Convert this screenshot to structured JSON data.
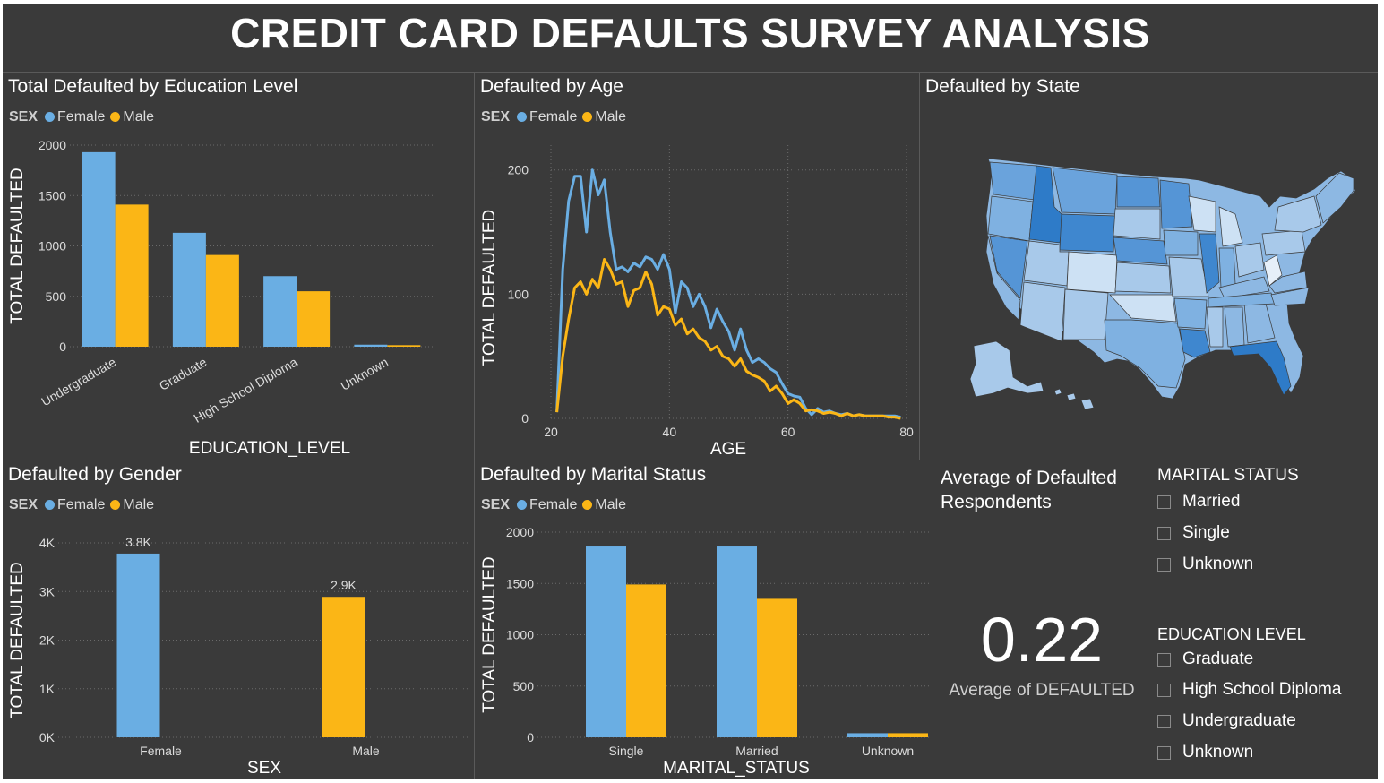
{
  "header": {
    "title": "CREDIT CARD DEFAULTS SURVEY ANALYSIS"
  },
  "colors": {
    "female": "#6aaee3",
    "male": "#fbb616",
    "background": "#3a3a3a",
    "text": "#ffffff"
  },
  "legend": {
    "title": "SEX",
    "female": "Female",
    "male": "Male"
  },
  "charts": {
    "education": {
      "title": "Total Defaulted by Education Level",
      "chart_data": {
        "type": "bar",
        "categories": [
          "Undergraduate",
          "Graduate",
          "High School Diploma",
          "Unknown"
        ],
        "series": [
          {
            "name": "Female",
            "values": [
              1930,
              1130,
              700,
              20
            ]
          },
          {
            "name": "Male",
            "values": [
              1410,
              910,
              550,
              15
            ]
          }
        ],
        "xlabel": "EDUCATION_LEVEL",
        "ylabel": "TOTAL DEFAULTED",
        "ylim": [
          0,
          2000
        ],
        "yticks": [
          0,
          500,
          1000,
          1500,
          2000
        ]
      }
    },
    "age": {
      "title": "Defaulted by Age",
      "chart_data": {
        "type": "line",
        "xlabel": "AGE",
        "ylabel": "TOTAL DEFAULTED",
        "xlim": [
          20,
          80
        ],
        "ylim": [
          0,
          220
        ],
        "xticks": [
          20,
          40,
          60,
          80
        ],
        "yticks": [
          0,
          100,
          200
        ],
        "series": [
          {
            "name": "Female",
            "x": [
              21,
              22,
              23,
              24,
              25,
              26,
              27,
              28,
              29,
              30,
              31,
              32,
              33,
              34,
              35,
              36,
              37,
              38,
              39,
              40,
              41,
              42,
              43,
              44,
              45,
              46,
              47,
              48,
              49,
              50,
              51,
              52,
              53,
              54,
              55,
              56,
              57,
              58,
              59,
              60,
              61,
              62,
              63,
              64,
              65,
              66,
              67,
              68,
              69,
              70,
              71,
              72,
              73,
              74,
              75,
              76,
              77,
              78,
              79
            ],
            "y": [
              5,
              120,
              175,
              195,
              195,
              150,
              200,
              180,
              192,
              150,
              120,
              122,
              118,
              125,
              122,
              130,
              128,
              120,
              132,
              120,
              85,
              110,
              105,
              90,
              100,
              90,
              73,
              88,
              78,
              70,
              55,
              72,
              55,
              45,
              48,
              45,
              40,
              37,
              28,
              20,
              18,
              17,
              8,
              3,
              8,
              5,
              6,
              4,
              3,
              4,
              2,
              3,
              2,
              2,
              2,
              2,
              2,
              2,
              1
            ]
          },
          {
            "name": "Male",
            "x": [
              21,
              22,
              23,
              24,
              25,
              26,
              27,
              28,
              29,
              30,
              31,
              32,
              33,
              34,
              35,
              36,
              37,
              38,
              39,
              40,
              41,
              42,
              43,
              44,
              45,
              46,
              47,
              48,
              49,
              50,
              51,
              52,
              53,
              54,
              55,
              56,
              57,
              58,
              59,
              60,
              61,
              62,
              63,
              64,
              65,
              66,
              67,
              68,
              69,
              70,
              71,
              72,
              73,
              74,
              75,
              76,
              77,
              78,
              79
            ],
            "y": [
              5,
              50,
              80,
              105,
              110,
              100,
              112,
              105,
              128,
              120,
              108,
              110,
              90,
              103,
              105,
              118,
              108,
              83,
              90,
              88,
              75,
              80,
              68,
              72,
              65,
              62,
              55,
              58,
              50,
              48,
              42,
              48,
              38,
              35,
              33,
              30,
              22,
              26,
              20,
              12,
              15,
              12,
              6,
              7,
              6,
              4,
              5,
              4,
              2,
              4,
              2,
              3,
              2,
              2,
              2,
              2,
              1,
              1,
              0
            ]
          }
        ]
      }
    },
    "state": {
      "title": "Defaulted by State"
    },
    "gender": {
      "title": "Defaulted by Gender",
      "chart_data": {
        "type": "bar",
        "categories": [
          "Female",
          "Male"
        ],
        "series": [
          {
            "name": "Female",
            "values": [
              3780,
              0
            ]
          },
          {
            "name": "Male",
            "values": [
              0,
              2890
            ]
          }
        ],
        "data_labels": [
          "3.8K",
          "2.9K"
        ],
        "xlabel": "SEX",
        "ylabel": "TOTAL DEFAULTED",
        "ylim": [
          0,
          4000
        ],
        "yticks": [
          0,
          1000,
          2000,
          3000,
          4000
        ],
        "ytick_labels": [
          "0K",
          "1K",
          "2K",
          "3K",
          "4K"
        ]
      }
    },
    "marital": {
      "title": "Defaulted by Marital Status",
      "chart_data": {
        "type": "bar",
        "categories": [
          "Single",
          "Married",
          "Unknown"
        ],
        "series": [
          {
            "name": "Female",
            "values": [
              1860,
              1860,
              40
            ]
          },
          {
            "name": "Male",
            "values": [
              1490,
              1350,
              40
            ]
          }
        ],
        "xlabel": "MARITAL_STATUS",
        "ylabel": "TOTAL DEFAULTED",
        "ylim": [
          0,
          2000
        ],
        "yticks": [
          0,
          500,
          1000,
          1500,
          2000
        ]
      }
    }
  },
  "kpi": {
    "title": "Average of Defaulted Respondents",
    "value": "0.22",
    "label": "Average of DEFAULTED"
  },
  "slicers": {
    "marital": {
      "title": "MARITAL STATUS",
      "items": [
        "Married",
        "Single",
        "Unknown"
      ]
    },
    "education": {
      "title": "EDUCATION LEVEL",
      "items": [
        "Graduate",
        "High School Diploma",
        "Undergraduate",
        "Unknown"
      ]
    }
  }
}
